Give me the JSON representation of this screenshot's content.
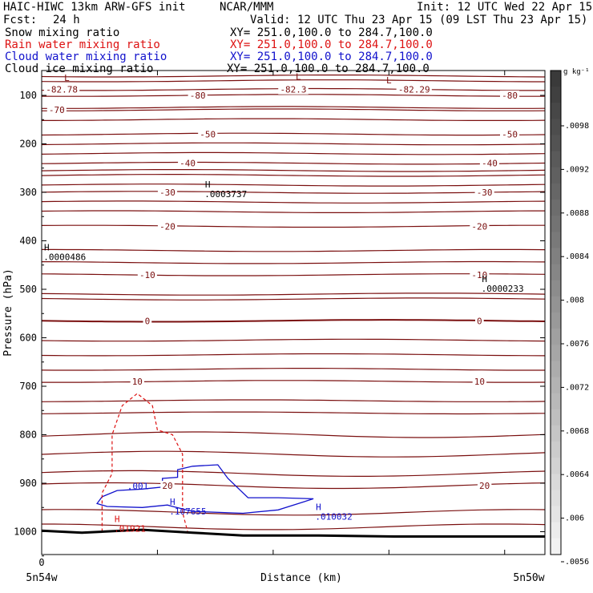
{
  "header": {
    "model": "HAIC-HIWC 13km ARW-GFS init",
    "org": "NCAR/MMM",
    "init": "Init: 12 UTC Wed 22 Apr 15",
    "fcst_label": "Fcst:",
    "fcst_value": "24 h",
    "valid": "Valid: 12 UTC Thu 23 Apr 15 (09 LST Thu 23 Apr 15)",
    "fields": [
      {
        "name": "Snow mixing ratio",
        "xy": "XY= 251.0,100.0 to 284.7,100.0",
        "color": "#000000"
      },
      {
        "name": "Rain water mixing ratio",
        "xy": "XY= 251.0,100.0 to 284.7,100.0",
        "color": "#dd1111"
      },
      {
        "name": "Cloud water mixing ratio",
        "xy": "XY= 251.0,100.0 to 284.7,100.0",
        "color": "#1111cc"
      },
      {
        "name": "Cloud ice mixing ratio",
        "xy": "XY= 251.0,100.0 to 284.7,100.0",
        "color": "#000000"
      }
    ]
  },
  "chart_data": {
    "type": "cross-section",
    "xlabel": "Distance (km)",
    "ylabel": "Pressure (hPa)",
    "x_start_label": "5n54w",
    "x_end_label": "5n50w",
    "x_tick_labels": [
      "0"
    ],
    "x_range": [
      0,
      100
    ],
    "x_minor_ticks": [
      0,
      23,
      46,
      69,
      92
    ],
    "y_ticks": [
      100,
      200,
      300,
      400,
      500,
      600,
      700,
      800,
      900,
      1000
    ],
    "y_range": [
      50,
      1050
    ],
    "pressure_scale": "linear",
    "temperature_contours": {
      "color": "#7a0f0f",
      "levels": [
        {
          "p": 88,
          "value": "-82.78",
          "x": 4
        },
        {
          "p": 88,
          "value": "-82.3",
          "x": 50
        },
        {
          "p": 88,
          "value": "-82.29",
          "x": 74
        },
        {
          "p": 100,
          "value": "-80",
          "x": 31
        },
        {
          "p": 100,
          "value": "-80",
          "x": 93
        },
        {
          "p": 130,
          "value": "-70",
          "x": 3
        },
        {
          "p": 180,
          "value": "-50",
          "x": 33
        },
        {
          "p": 180,
          "value": "-50",
          "x": 93
        },
        {
          "p": 240,
          "value": "-40",
          "x": 29
        },
        {
          "p": 240,
          "value": "-40",
          "x": 89
        },
        {
          "p": 300,
          "value": "-30",
          "x": 25
        },
        {
          "p": 300,
          "value": "-30",
          "x": 88
        },
        {
          "p": 370,
          "value": "-20",
          "x": 25
        },
        {
          "p": 370,
          "value": "-20",
          "x": 87
        },
        {
          "p": 470,
          "value": "-10",
          "x": 21
        },
        {
          "p": 470,
          "value": "-10",
          "x": 87
        },
        {
          "p": 565,
          "value": "0",
          "x": 21
        },
        {
          "p": 565,
          "value": "0",
          "x": 87
        },
        {
          "p": 690,
          "value": "10",
          "x": 19
        },
        {
          "p": 690,
          "value": "10",
          "x": 87
        },
        {
          "p": 905,
          "value": "20",
          "x": 25
        },
        {
          "p": 905,
          "value": "20",
          "x": 88
        }
      ],
      "unlabeled_levels": [
        60,
        70,
        125,
        150,
        200,
        220,
        255,
        265,
        285,
        320,
        340,
        420,
        445,
        510,
        520,
        605,
        635,
        665,
        730,
        755,
        800,
        840,
        880,
        960,
        990
      ]
    },
    "extrema": [
      {
        "type": "L",
        "x": 5,
        "p": 70,
        "color": "#7a0f0f"
      },
      {
        "type": "L",
        "x": 51,
        "p": 68,
        "color": "#7a0f0f"
      },
      {
        "type": "L",
        "x": 69,
        "p": 75,
        "color": "#7a0f0f"
      },
      {
        "type": "H",
        "x": 33,
        "p": 290,
        "value": ".0003737",
        "color": "#000000"
      },
      {
        "type": "H",
        "x": 1,
        "p": 420,
        "value": ".0000486",
        "color": "#000000"
      },
      {
        "type": "H",
        "x": 88,
        "p": 485,
        "value": ".0000233",
        "color": "#000000"
      },
      {
        "type": "H",
        "x": 26,
        "p": 945,
        "value": ".107655",
        "color": "#1111cc"
      },
      {
        "type": "H",
        "x": 55,
        "p": 955,
        "value": ".010032",
        "color": "#1111cc"
      },
      {
        "type": "H",
        "x": 15,
        "p": 980,
        "value": ".01921",
        "color": "#dd1111"
      }
    ],
    "cloud_water_contour": {
      "color": "#1111cc",
      "label": ".001",
      "points": [
        [
          12,
          928
        ],
        [
          15,
          915
        ],
        [
          20,
          912
        ],
        [
          24,
          908
        ],
        [
          24,
          890
        ],
        [
          27,
          888
        ],
        [
          27,
          872
        ],
        [
          30,
          865
        ],
        [
          35,
          862
        ],
        [
          37,
          890
        ],
        [
          41,
          930
        ],
        [
          47,
          930
        ],
        [
          54,
          932
        ],
        [
          47,
          955
        ],
        [
          40,
          962
        ],
        [
          30,
          958
        ],
        [
          26,
          948
        ],
        [
          25,
          945
        ],
        [
          20,
          950
        ],
        [
          13,
          948
        ],
        [
          11,
          942
        ],
        [
          12,
          928
        ]
      ]
    },
    "rain_water_contour": {
      "color": "#dd1111",
      "style": "dashed",
      "points": [
        [
          12,
          1000
        ],
        [
          12,
          920
        ],
        [
          14,
          880
        ],
        [
          14,
          800
        ],
        [
          16,
          740
        ],
        [
          19,
          715
        ],
        [
          22,
          740
        ],
        [
          23,
          790
        ],
        [
          26,
          800
        ],
        [
          28,
          840
        ],
        [
          28,
          960
        ],
        [
          29,
          1000
        ]
      ]
    },
    "terrain": {
      "color": "#000000",
      "points": [
        [
          0,
          998
        ],
        [
          8,
          1002
        ],
        [
          16,
          998
        ],
        [
          20,
          996
        ],
        [
          30,
          1002
        ],
        [
          40,
          1008
        ],
        [
          55,
          1008
        ],
        [
          70,
          1010
        ],
        [
          100,
          1010
        ]
      ]
    },
    "colorbar": {
      "unit": "g kg⁻¹",
      "labels": [
        ".0098",
        ".0092",
        ".0088",
        ".0084",
        ".008",
        ".0076",
        ".0072",
        ".0068",
        ".0064",
        ".006",
        ".0056"
      ],
      "gray_from": "#3a3a3a",
      "gray_to": "#f2f2f2"
    }
  }
}
